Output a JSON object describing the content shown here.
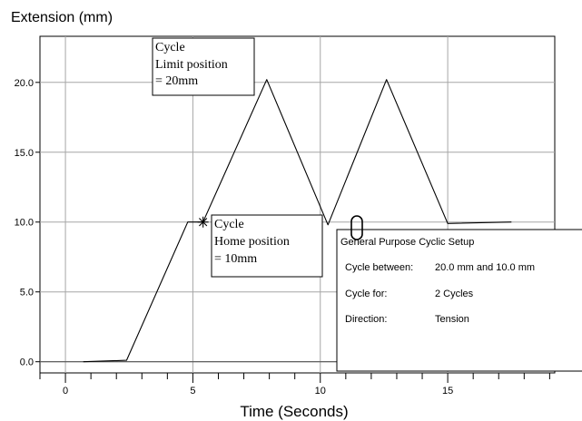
{
  "chart_data": {
    "type": "line",
    "title": "",
    "ylabel": "Extension (mm)",
    "xlabel": "Time (Seconds)",
    "xlim": [
      -1,
      19.2
    ],
    "ylim": [
      -0.8,
      23.3
    ],
    "x_ticks": [
      "0",
      "5",
      "10",
      "15"
    ],
    "y_ticks": [
      "0.0",
      "5.0",
      "10.0",
      "15.0",
      "20.0"
    ],
    "grid": true,
    "baseline_y": 0,
    "series": [
      {
        "x": [
          0.7,
          2.4,
          4.8,
          5.4,
          7.9,
          10.3,
          12.6,
          15.0,
          17.5
        ],
        "y": [
          0.0,
          0.1,
          10.0,
          10.0,
          20.2,
          9.8,
          20.2,
          9.9,
          10.0
        ]
      }
    ],
    "annotations": [
      {
        "lines": [
          "Cycle",
          "Limit position",
          "= 20mm"
        ]
      },
      {
        "lines": [
          "Cycle",
          "Home position",
          "= 10mm"
        ]
      }
    ],
    "marker": {
      "x": 5.4,
      "y": 10.0,
      "symbol": "*"
    }
  },
  "setup_panel": {
    "title": "General Purpose Cyclic Setup",
    "rows": [
      {
        "label": "Cycle between:",
        "value": "20.0 mm and 10.0 mm"
      },
      {
        "label": "Cycle for:",
        "value": "2 Cycles"
      },
      {
        "label": "Direction:",
        "value": "Tension"
      }
    ]
  }
}
